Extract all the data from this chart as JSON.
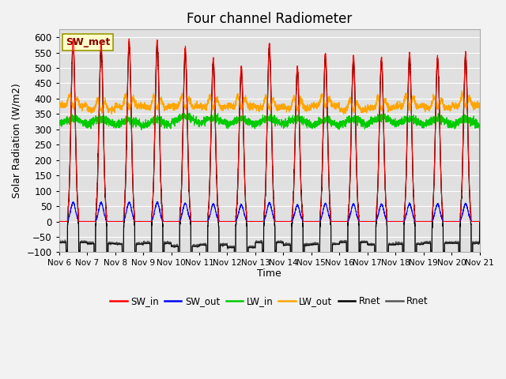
{
  "title": "Four channel Radiometer",
  "xlabel": "Time",
  "ylabel": "Solar Radiation (W/m2)",
  "ylim": [
    -100,
    625
  ],
  "yticks": [
    -100,
    -50,
    0,
    50,
    100,
    150,
    200,
    250,
    300,
    350,
    400,
    450,
    500,
    550,
    600
  ],
  "num_days": 15,
  "date_labels": [
    "Nov 6",
    "Nov 7",
    "Nov 8",
    "Nov 9",
    "Nov 10",
    "Nov 11",
    "Nov 12",
    "Nov 13",
    "Nov 14",
    "Nov 15",
    "Nov 16",
    "Nov 17",
    "Nov 18",
    "Nov 19",
    "Nov 20",
    "Nov 21"
  ],
  "colors": {
    "SW_in": "#ff0000",
    "SW_out": "#0000ff",
    "LW_in": "#00cc00",
    "LW_out": "#ffa500",
    "Rnet_black": "#000000",
    "Rnet_dark": "#555555"
  },
  "peak_SW": [
    595,
    580,
    590,
    590,
    565,
    530,
    505,
    580,
    505,
    545,
    540,
    535,
    550,
    540,
    550
  ],
  "annotation_text": "SW_met",
  "annotation_box_facecolor": "#ffffcc",
  "annotation_box_edgecolor": "#999900",
  "annotation_text_color": "#880000",
  "background_color": "#e0e0e0",
  "grid_color": "#ffffff",
  "figsize": [
    6.4,
    4.8
  ],
  "dpi": 100
}
